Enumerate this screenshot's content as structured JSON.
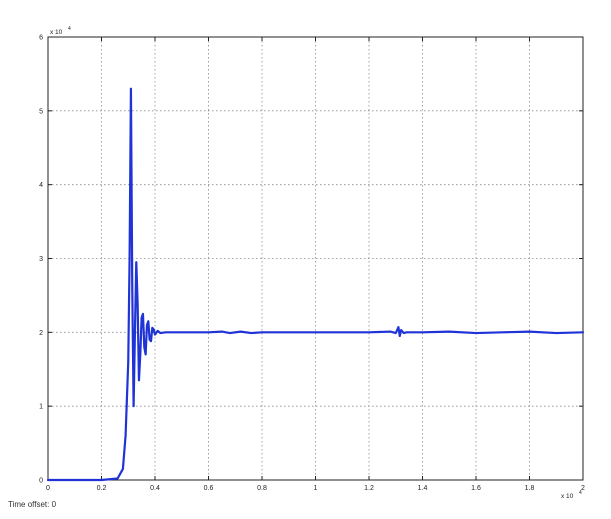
{
  "footer": {
    "time_offset": "Time offset: 0"
  },
  "colors": {
    "trace": "#1f33d6",
    "grid": "#8a8a8a",
    "axis": "#222222"
  },
  "chart_data": {
    "type": "line",
    "title": "",
    "xlabel": "",
    "ylabel": "",
    "x_exponent_label": "x 10",
    "x_exponent_power": "4",
    "y_exponent_label": "x 10",
    "y_exponent_power": "4",
    "xlim": [
      0,
      2
    ],
    "ylim": [
      0,
      6
    ],
    "xticks": [
      0,
      0.2,
      0.4,
      0.6,
      0.8,
      1,
      1.2,
      1.4,
      1.6,
      1.8,
      2
    ],
    "xtick_labels": [
      "0",
      "0.2",
      "0.4",
      "0.6",
      "0.8",
      "1",
      "1.2",
      "1.4",
      "1.6",
      "1.8",
      "2"
    ],
    "yticks": [
      0,
      1,
      2,
      3,
      4,
      5,
      6
    ],
    "ytick_labels": [
      "0",
      "1",
      "2",
      "3",
      "4",
      "5",
      "6"
    ],
    "grid": true,
    "series": [
      {
        "x": [
          0,
          0.2,
          0.26,
          0.28,
          0.29,
          0.3,
          0.305,
          0.31,
          0.315,
          0.32,
          0.325,
          0.33,
          0.335,
          0.34,
          0.345,
          0.35,
          0.355,
          0.36,
          0.365,
          0.37,
          0.375,
          0.38,
          0.385,
          0.39,
          0.395,
          0.4,
          0.41,
          0.42,
          0.44,
          0.5,
          0.55,
          0.6,
          0.65,
          0.68,
          0.72,
          0.76,
          0.8,
          0.9,
          1.0,
          1.1,
          1.2,
          1.28,
          1.3,
          1.31,
          1.315,
          1.32,
          1.33,
          1.34,
          1.4,
          1.5,
          1.6,
          1.7,
          1.8,
          1.9,
          2.0
        ],
        "y": [
          0,
          0,
          0.02,
          0.15,
          0.6,
          1.6,
          3.0,
          5.3,
          2.6,
          1.0,
          2.0,
          2.95,
          2.4,
          1.35,
          1.7,
          2.2,
          2.25,
          1.8,
          1.7,
          2.1,
          2.15,
          1.9,
          1.88,
          2.06,
          2.04,
          1.97,
          2.02,
          1.99,
          2.0,
          2.0,
          2.0,
          2.0,
          2.01,
          1.99,
          2.01,
          1.99,
          2.0,
          2.0,
          2.0,
          2.0,
          2.0,
          2.01,
          1.99,
          2.07,
          1.95,
          2.03,
          1.99,
          2.0,
          2.0,
          2.01,
          1.99,
          2.0,
          2.01,
          1.99,
          2.0
        ]
      }
    ]
  }
}
